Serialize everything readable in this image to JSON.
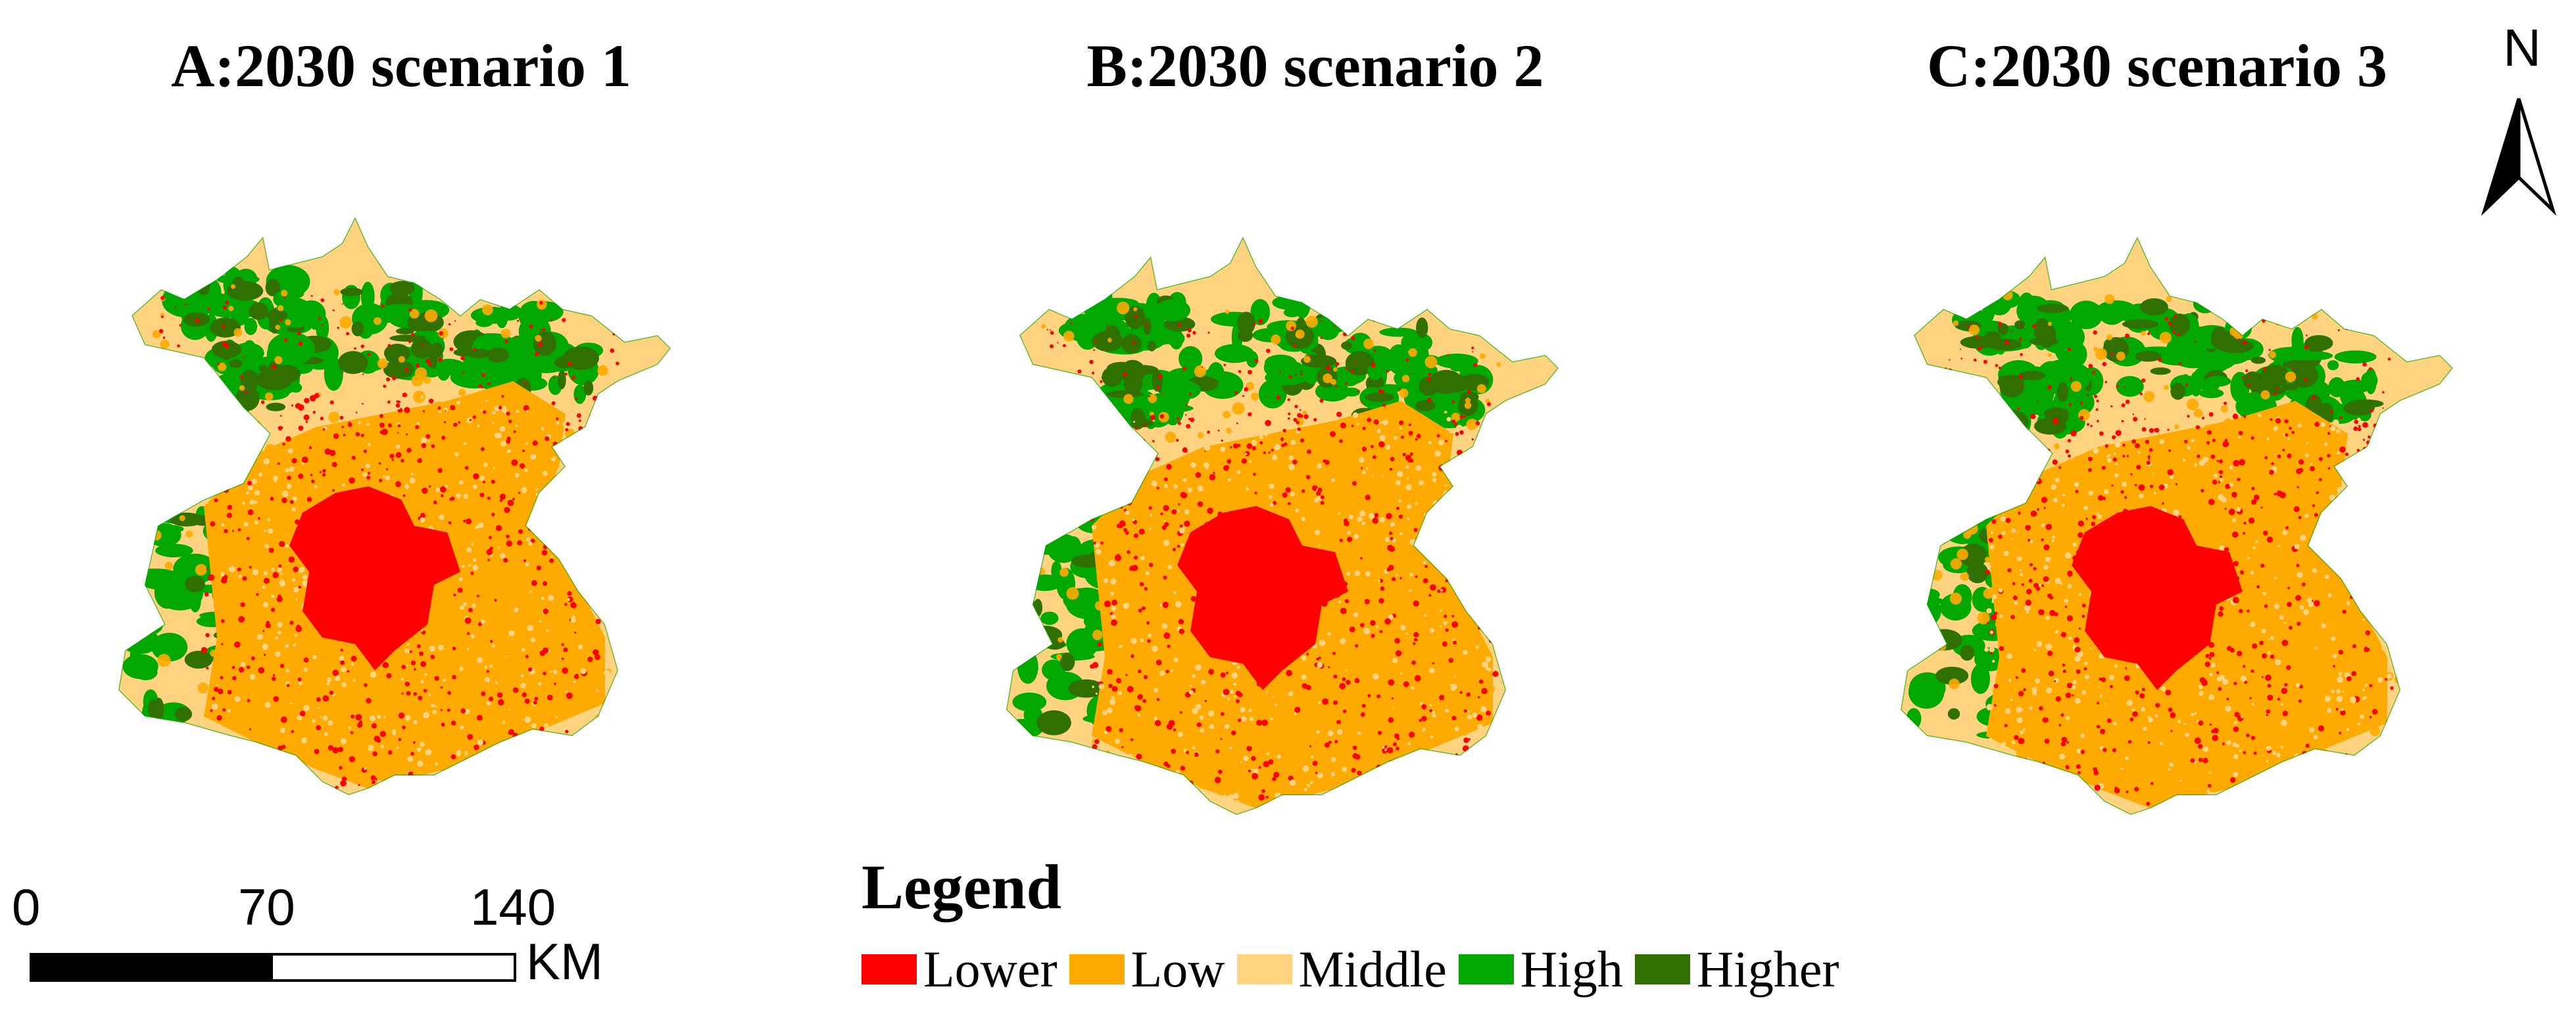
{
  "panels": [
    {
      "id": "A",
      "title": "A:2030 scenario 1"
    },
    {
      "id": "B",
      "title": "B:2030 scenario 2"
    },
    {
      "id": "C",
      "title": "C:2030 scenario 3"
    }
  ],
  "north_arrow": {
    "label": "N"
  },
  "scale_bar": {
    "labels": [
      "0",
      "70",
      "140"
    ],
    "unit": "KM"
  },
  "legend": {
    "title": "Legend",
    "items": [
      {
        "label": "Lower",
        "color": "#ff0000"
      },
      {
        "label": "Low",
        "color": "#ffaa00"
      },
      {
        "label": "Middle",
        "color": "#ffd37f"
      },
      {
        "label": "High",
        "color": "#00a800"
      },
      {
        "label": "Higher",
        "color": "#2f7000"
      }
    ]
  },
  "colors": {
    "lower": "#ff0000",
    "low": "#ffaa00",
    "middle": "#ffd37f",
    "high": "#00a800",
    "higher": "#2f7000"
  }
}
